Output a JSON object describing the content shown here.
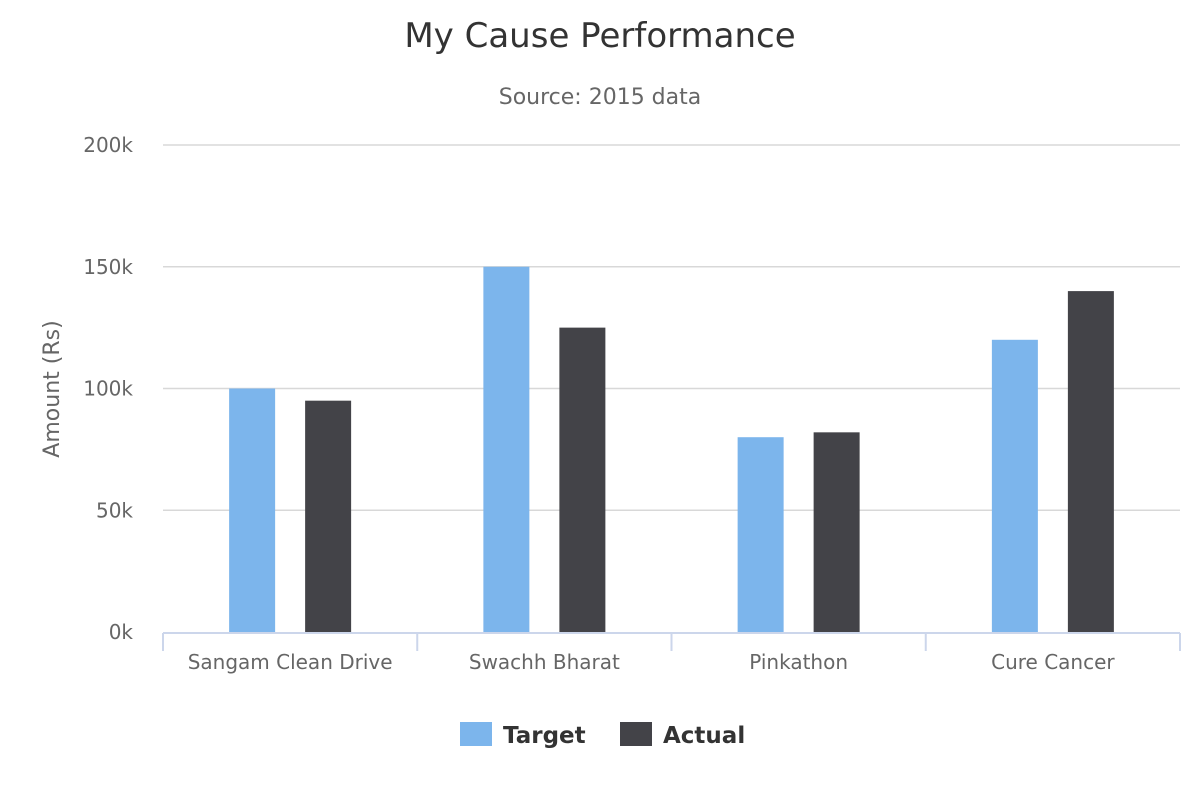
{
  "chart_data": {
    "type": "bar",
    "title": "My Cause Performance",
    "subtitle": "Source: 2015 data",
    "ylabel": "Amount (Rs)",
    "xlabel": "",
    "categories": [
      "Sangam Clean Drive",
      "Swachh Bharat",
      "Pinkathon",
      "Cure Cancer"
    ],
    "series": [
      {
        "name": "Target",
        "values": [
          100000,
          150000,
          80000,
          120000
        ],
        "color": "#7cb5ec"
      },
      {
        "name": "Actual",
        "values": [
          95000,
          125000,
          82000,
          140000
        ],
        "color": "#434348"
      }
    ],
    "ylim": [
      0,
      200000
    ],
    "yticks": [
      {
        "value": 0,
        "label": "0k"
      },
      {
        "value": 50000,
        "label": "50k"
      },
      {
        "value": 100000,
        "label": "100k"
      },
      {
        "value": 150000,
        "label": "150k"
      },
      {
        "value": 200000,
        "label": "200k"
      }
    ],
    "grid": true,
    "legend_position": "bottom-center"
  }
}
